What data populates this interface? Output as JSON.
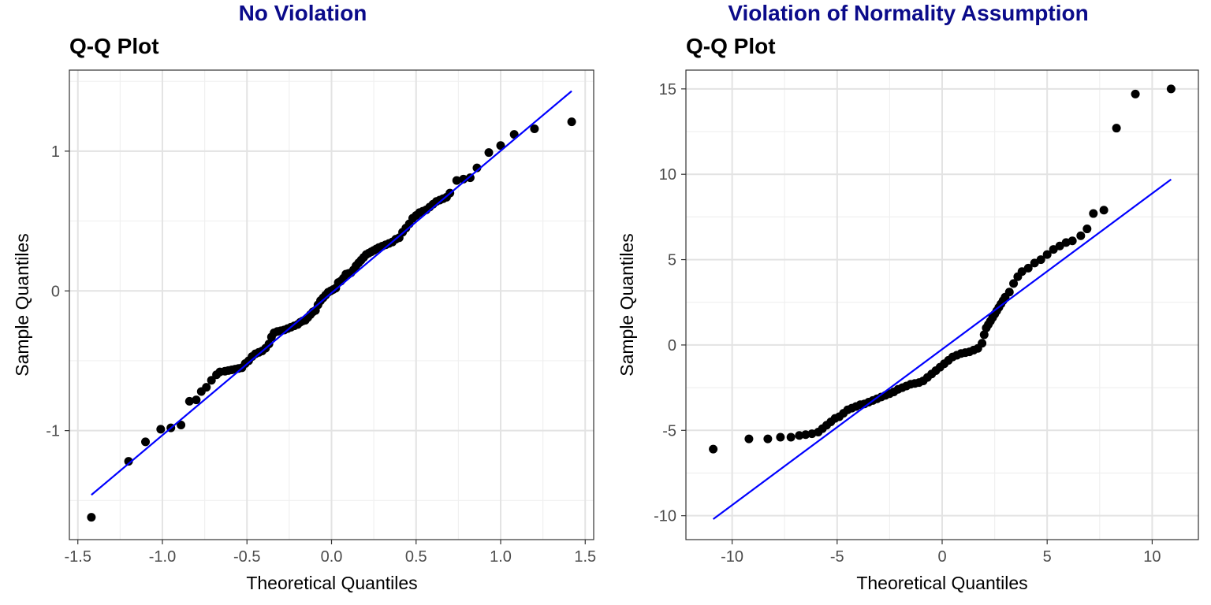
{
  "chart_data": [
    {
      "type": "scatter",
      "banner": "No Violation",
      "title": "Q-Q Plot",
      "xlabel": "Theoretical Quantiles",
      "ylabel": "Sample Quantiles",
      "xlim": [
        -1.55,
        1.55
      ],
      "ylim": [
        -1.78,
        1.58
      ],
      "x_ticks": [
        -1.5,
        -1.0,
        -0.5,
        0.0,
        0.5,
        1.0,
        1.5
      ],
      "x_tick_labels": [
        "-1.5",
        "-1.0",
        "-0.5",
        "0.0",
        "0.5",
        "1.0",
        "1.5"
      ],
      "y_ticks": [
        -1,
        0,
        1
      ],
      "y_tick_labels": [
        "-1",
        "0",
        "1"
      ],
      "grid": true,
      "point_color": "#000000",
      "line_color": "#0000ff",
      "reference_line": [
        [
          -1.42,
          -1.46
        ],
        [
          1.42,
          1.43
        ]
      ],
      "points": [
        [
          -1.42,
          -1.62
        ],
        [
          -1.2,
          -1.22
        ],
        [
          -1.1,
          -1.08
        ],
        [
          -1.01,
          -0.99
        ],
        [
          -0.95,
          -0.98
        ],
        [
          -0.89,
          -0.96
        ],
        [
          -0.84,
          -0.79
        ],
        [
          -0.8,
          -0.78
        ],
        [
          -0.77,
          -0.72
        ],
        [
          -0.74,
          -0.69
        ],
        [
          -0.71,
          -0.64
        ],
        [
          -0.68,
          -0.6
        ],
        [
          -0.66,
          -0.58
        ],
        [
          -0.63,
          -0.575
        ],
        [
          -0.61,
          -0.57
        ],
        [
          -0.59,
          -0.565
        ],
        [
          -0.57,
          -0.56
        ],
        [
          -0.55,
          -0.555
        ],
        [
          -0.53,
          -0.55
        ],
        [
          -0.51,
          -0.52
        ],
        [
          -0.49,
          -0.5
        ],
        [
          -0.47,
          -0.47
        ],
        [
          -0.45,
          -0.45
        ],
        [
          -0.43,
          -0.44
        ],
        [
          -0.41,
          -0.43
        ],
        [
          -0.39,
          -0.41
        ],
        [
          -0.37,
          -0.38
        ],
        [
          -0.355,
          -0.33
        ],
        [
          -0.34,
          -0.3
        ],
        [
          -0.32,
          -0.29
        ],
        [
          -0.3,
          -0.285
        ],
        [
          -0.28,
          -0.28
        ],
        [
          -0.26,
          -0.27
        ],
        [
          -0.24,
          -0.26
        ],
        [
          -0.22,
          -0.25
        ],
        [
          -0.2,
          -0.24
        ],
        [
          -0.185,
          -0.225
        ],
        [
          -0.17,
          -0.215
        ],
        [
          -0.155,
          -0.21
        ],
        [
          -0.14,
          -0.19
        ],
        [
          -0.125,
          -0.17
        ],
        [
          -0.11,
          -0.15
        ],
        [
          -0.095,
          -0.14
        ],
        [
          -0.08,
          -0.1
        ],
        [
          -0.065,
          -0.07
        ],
        [
          -0.05,
          -0.05
        ],
        [
          -0.035,
          -0.03
        ],
        [
          -0.02,
          -0.01
        ],
        [
          -0.005,
          0.0
        ],
        [
          0.01,
          0.01
        ],
        [
          0.025,
          0.02
        ],
        [
          0.04,
          0.06
        ],
        [
          0.055,
          0.07
        ],
        [
          0.07,
          0.09
        ],
        [
          0.085,
          0.12
        ],
        [
          0.1,
          0.125
        ],
        [
          0.115,
          0.13
        ],
        [
          0.13,
          0.15
        ],
        [
          0.145,
          0.18
        ],
        [
          0.16,
          0.2
        ],
        [
          0.175,
          0.22
        ],
        [
          0.19,
          0.24
        ],
        [
          0.205,
          0.26
        ],
        [
          0.22,
          0.27
        ],
        [
          0.235,
          0.28
        ],
        [
          0.25,
          0.29
        ],
        [
          0.265,
          0.3
        ],
        [
          0.28,
          0.31
        ],
        [
          0.3,
          0.32
        ],
        [
          0.32,
          0.33
        ],
        [
          0.34,
          0.34
        ],
        [
          0.36,
          0.35
        ],
        [
          0.38,
          0.37
        ],
        [
          0.4,
          0.38
        ],
        [
          0.42,
          0.42
        ],
        [
          0.44,
          0.45
        ],
        [
          0.46,
          0.48
        ],
        [
          0.48,
          0.52
        ],
        [
          0.5,
          0.54
        ],
        [
          0.52,
          0.56
        ],
        [
          0.54,
          0.57
        ],
        [
          0.56,
          0.58
        ],
        [
          0.58,
          0.6
        ],
        [
          0.6,
          0.62
        ],
        [
          0.62,
          0.64
        ],
        [
          0.64,
          0.65
        ],
        [
          0.66,
          0.66
        ],
        [
          0.68,
          0.67
        ],
        [
          0.7,
          0.7
        ],
        [
          0.74,
          0.79
        ],
        [
          0.78,
          0.8
        ],
        [
          0.82,
          0.81
        ],
        [
          0.86,
          0.88
        ],
        [
          0.93,
          0.99
        ],
        [
          1.0,
          1.04
        ],
        [
          1.08,
          1.12
        ],
        [
          1.2,
          1.16
        ],
        [
          1.42,
          1.21
        ]
      ]
    },
    {
      "type": "scatter",
      "banner": "Violation of Normality Assumption",
      "title": "Q-Q Plot",
      "xlabel": "Theoretical Quantiles",
      "ylabel": "Sample Quantiles",
      "xlim": [
        -12.2,
        12.2
      ],
      "ylim": [
        -11.4,
        16.1
      ],
      "x_ticks": [
        -10,
        -5,
        0,
        5,
        10
      ],
      "x_tick_labels": [
        "-10",
        "-5",
        "0",
        "5",
        "10"
      ],
      "y_ticks": [
        -10,
        -5,
        0,
        5,
        10,
        15
      ],
      "y_tick_labels": [
        "-10",
        "-5",
        "0",
        "5",
        "10",
        "15"
      ],
      "grid": true,
      "point_color": "#000000",
      "line_color": "#0000ff",
      "reference_line": [
        [
          -10.9,
          -10.2
        ],
        [
          10.9,
          9.7
        ]
      ],
      "points": [
        [
          -10.9,
          -6.1
        ],
        [
          -9.2,
          -5.5
        ],
        [
          -8.3,
          -5.5
        ],
        [
          -7.7,
          -5.4
        ],
        [
          -7.2,
          -5.4
        ],
        [
          -6.8,
          -5.3
        ],
        [
          -6.5,
          -5.25
        ],
        [
          -6.2,
          -5.2
        ],
        [
          -5.9,
          -5.1
        ],
        [
          -5.7,
          -4.9
        ],
        [
          -5.5,
          -4.7
        ],
        [
          -5.3,
          -4.5
        ],
        [
          -5.1,
          -4.3
        ],
        [
          -4.9,
          -4.2
        ],
        [
          -4.7,
          -4.0
        ],
        [
          -4.5,
          -3.8
        ],
        [
          -4.3,
          -3.7
        ],
        [
          -4.1,
          -3.6
        ],
        [
          -3.9,
          -3.5
        ],
        [
          -3.7,
          -3.45
        ],
        [
          -3.5,
          -3.35
        ],
        [
          -3.3,
          -3.25
        ],
        [
          -3.1,
          -3.15
        ],
        [
          -2.9,
          -3.05
        ],
        [
          -2.7,
          -2.95
        ],
        [
          -2.5,
          -2.85
        ],
        [
          -2.3,
          -2.75
        ],
        [
          -2.1,
          -2.6
        ],
        [
          -1.9,
          -2.5
        ],
        [
          -1.7,
          -2.4
        ],
        [
          -1.5,
          -2.3
        ],
        [
          -1.3,
          -2.25
        ],
        [
          -1.1,
          -2.2
        ],
        [
          -0.9,
          -2.1
        ],
        [
          -0.7,
          -1.9
        ],
        [
          -0.5,
          -1.7
        ],
        [
          -0.3,
          -1.5
        ],
        [
          -0.1,
          -1.3
        ],
        [
          0.1,
          -1.1
        ],
        [
          0.3,
          -0.9
        ],
        [
          0.5,
          -0.7
        ],
        [
          0.7,
          -0.6
        ],
        [
          0.9,
          -0.5
        ],
        [
          1.1,
          -0.45
        ],
        [
          1.3,
          -0.4
        ],
        [
          1.5,
          -0.3
        ],
        [
          1.7,
          -0.2
        ],
        [
          1.9,
          0.1
        ],
        [
          2.0,
          0.6
        ],
        [
          2.1,
          1.0
        ],
        [
          2.2,
          1.2
        ],
        [
          2.3,
          1.4
        ],
        [
          2.4,
          1.6
        ],
        [
          2.5,
          1.8
        ],
        [
          2.6,
          2.0
        ],
        [
          2.7,
          2.2
        ],
        [
          2.8,
          2.4
        ],
        [
          2.9,
          2.6
        ],
        [
          3.0,
          2.8
        ],
        [
          3.2,
          3.1
        ],
        [
          3.4,
          3.6
        ],
        [
          3.6,
          4.0
        ],
        [
          3.8,
          4.3
        ],
        [
          4.1,
          4.5
        ],
        [
          4.4,
          4.8
        ],
        [
          4.7,
          5.0
        ],
        [
          5.0,
          5.3
        ],
        [
          5.3,
          5.6
        ],
        [
          5.6,
          5.8
        ],
        [
          5.9,
          6.0
        ],
        [
          6.2,
          6.1
        ],
        [
          6.6,
          6.4
        ],
        [
          6.9,
          6.8
        ],
        [
          7.2,
          7.7
        ],
        [
          7.7,
          7.9
        ],
        [
          8.3,
          12.7
        ],
        [
          9.2,
          14.7
        ],
        [
          10.9,
          15.0
        ]
      ]
    }
  ]
}
